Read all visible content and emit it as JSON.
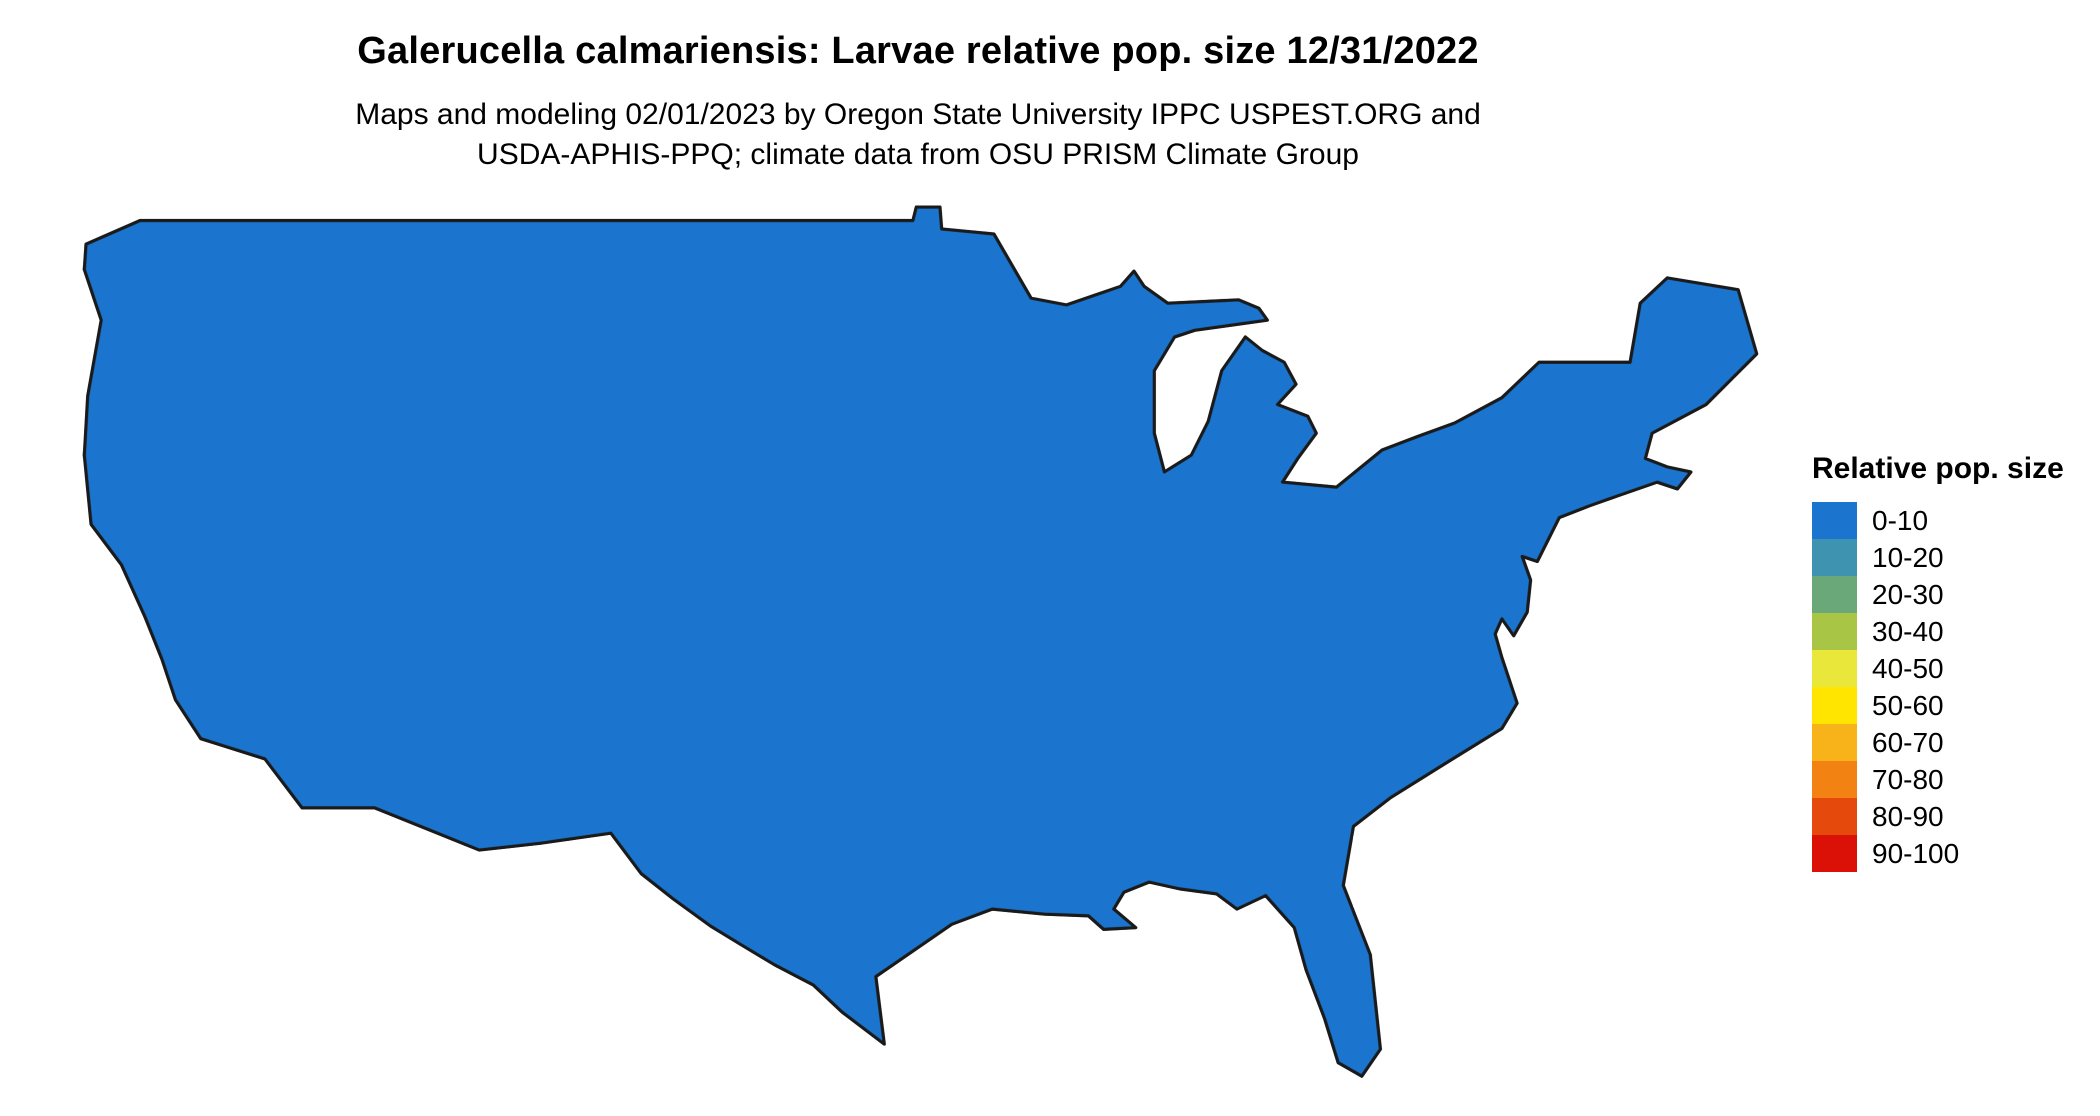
{
  "title": "Galerucella calmariensis: Larvae relative pop. size 12/31/2022",
  "subtitle": {
    "line1": "Maps and modeling 02/01/2023 by Oregon State University IPPC USPEST.ORG and",
    "line2": "USDA-APHIS-PPQ; climate data from OSU PRISM Climate Group"
  },
  "legend": {
    "title": "Relative pop. size",
    "bins": [
      {
        "label": "0-10",
        "color": "#1B75CE"
      },
      {
        "label": "10-20",
        "color": "#3E93B0"
      },
      {
        "label": "20-30",
        "color": "#6AA87A"
      },
      {
        "label": "30-40",
        "color": "#A9C545"
      },
      {
        "label": "40-50",
        "color": "#E8E73A"
      },
      {
        "label": "50-60",
        "color": "#FFE500"
      },
      {
        "label": "60-70",
        "color": "#F8B31A"
      },
      {
        "label": "70-80",
        "color": "#F28312"
      },
      {
        "label": "80-90",
        "color": "#E54A0C"
      },
      {
        "label": "90-100",
        "color": "#DB1006"
      }
    ]
  }
}
